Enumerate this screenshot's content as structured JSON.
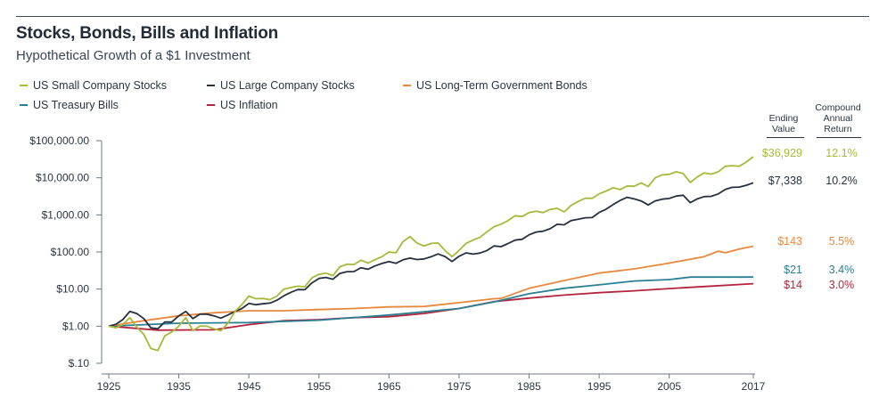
{
  "title": "Stocks, Bonds, Bills and Inflation",
  "subtitle": "Hypothetical Growth of a $1 Investment",
  "columns": {
    "ending_value": [
      "Ending",
      "Value"
    ],
    "cagr": [
      "Compound",
      "Annual",
      "Return"
    ]
  },
  "chart_data": {
    "type": "line",
    "title": "Stocks, Bonds, Bills and Inflation",
    "subtitle": "Hypothetical Growth of a $1 Investment",
    "y_scale": "log",
    "ylim": [
      0.1,
      100000
    ],
    "xlim": [
      1925,
      2017
    ],
    "x_ticks": [
      "1925",
      "1935",
      "1945",
      "1955",
      "1965",
      "1975",
      "1985",
      "1995",
      "2005",
      "2017"
    ],
    "x_tick_values": [
      1925,
      1935,
      1945,
      1955,
      1965,
      1975,
      1985,
      1995,
      2005,
      2017
    ],
    "y_ticks": [
      "$100,000.00",
      "$10,000.00",
      "$1,000.00",
      "$100.00",
      "$10.00",
      "$1.00",
      "$.10"
    ],
    "y_tick_values": [
      100000,
      10000,
      1000,
      100,
      10,
      1,
      0.1
    ],
    "grid": false,
    "legend_position": "top-left",
    "series": [
      {
        "name": "US Small Company Stocks",
        "color": "#a8b93a",
        "ending_value": "$36,929",
        "cagr": "12.1%",
        "points": [
          [
            1925,
            1
          ],
          [
            1926,
            0.9
          ],
          [
            1927,
            1.1
          ],
          [
            1928,
            1.7
          ],
          [
            1929,
            0.95
          ],
          [
            1930,
            0.6
          ],
          [
            1931,
            0.25
          ],
          [
            1932,
            0.22
          ],
          [
            1933,
            0.55
          ],
          [
            1934,
            0.7
          ],
          [
            1935,
            1.0
          ],
          [
            1936,
            1.7
          ],
          [
            1937,
            0.75
          ],
          [
            1938,
            1.0
          ],
          [
            1939,
            1.0
          ],
          [
            1940,
            0.85
          ],
          [
            1941,
            0.75
          ],
          [
            1942,
            1.2
          ],
          [
            1943,
            2.5
          ],
          [
            1944,
            3.8
          ],
          [
            1945,
            6.5
          ],
          [
            1946,
            5.5
          ],
          [
            1947,
            5.6
          ],
          [
            1948,
            5.2
          ],
          [
            1949,
            6.5
          ],
          [
            1950,
            10
          ],
          [
            1951,
            11
          ],
          [
            1952,
            12
          ],
          [
            1953,
            11.5
          ],
          [
            1954,
            20
          ],
          [
            1955,
            25
          ],
          [
            1956,
            27
          ],
          [
            1957,
            23
          ],
          [
            1958,
            40
          ],
          [
            1959,
            47
          ],
          [
            1960,
            46
          ],
          [
            1961,
            60
          ],
          [
            1962,
            50
          ],
          [
            1963,
            62
          ],
          [
            1964,
            75
          ],
          [
            1965,
            100
          ],
          [
            1966,
            95
          ],
          [
            1967,
            190
          ],
          [
            1968,
            260
          ],
          [
            1969,
            175
          ],
          [
            1970,
            145
          ],
          [
            1971,
            170
          ],
          [
            1972,
            175
          ],
          [
            1973,
            110
          ],
          [
            1974,
            75
          ],
          [
            1975,
            110
          ],
          [
            1976,
            170
          ],
          [
            1977,
            210
          ],
          [
            1978,
            250
          ],
          [
            1979,
            350
          ],
          [
            1980,
            480
          ],
          [
            1981,
            560
          ],
          [
            1982,
            700
          ],
          [
            1983,
            950
          ],
          [
            1984,
            900
          ],
          [
            1985,
            1150
          ],
          [
            1986,
            1250
          ],
          [
            1987,
            1150
          ],
          [
            1988,
            1400
          ],
          [
            1989,
            1500
          ],
          [
            1990,
            1200
          ],
          [
            1991,
            1800
          ],
          [
            1992,
            2300
          ],
          [
            1993,
            2800
          ],
          [
            1994,
            2800
          ],
          [
            1995,
            3700
          ],
          [
            1996,
            4400
          ],
          [
            1997,
            5400
          ],
          [
            1998,
            4800
          ],
          [
            1999,
            6000
          ],
          [
            2000,
            5900
          ],
          [
            2001,
            7300
          ],
          [
            2002,
            5800
          ],
          [
            2003,
            10000
          ],
          [
            2004,
            12000
          ],
          [
            2005,
            12400
          ],
          [
            2006,
            14500
          ],
          [
            2007,
            13000
          ],
          [
            2008,
            7500
          ],
          [
            2009,
            10500
          ],
          [
            2010,
            13500
          ],
          [
            2011,
            12500
          ],
          [
            2012,
            14500
          ],
          [
            2013,
            20500
          ],
          [
            2014,
            21200
          ],
          [
            2015,
            20500
          ],
          [
            2016,
            26500
          ],
          [
            2017,
            36929
          ]
        ]
      },
      {
        "name": "US Large Company Stocks",
        "color": "#25313f",
        "ending_value": "$7,338",
        "cagr": "10.2%",
        "points": [
          [
            1925,
            1
          ],
          [
            1926,
            1.12
          ],
          [
            1927,
            1.5
          ],
          [
            1928,
            2.5
          ],
          [
            1929,
            2.2
          ],
          [
            1930,
            1.6
          ],
          [
            1931,
            0.9
          ],
          [
            1932,
            0.85
          ],
          [
            1933,
            1.3
          ],
          [
            1934,
            1.3
          ],
          [
            1935,
            1.9
          ],
          [
            1936,
            2.5
          ],
          [
            1937,
            1.6
          ],
          [
            1938,
            2.1
          ],
          [
            1939,
            2.1
          ],
          [
            1940,
            1.9
          ],
          [
            1941,
            1.65
          ],
          [
            1942,
            2.0
          ],
          [
            1943,
            2.5
          ],
          [
            1944,
            3.0
          ],
          [
            1945,
            4.1
          ],
          [
            1946,
            3.8
          ],
          [
            1947,
            4.0
          ],
          [
            1948,
            4.2
          ],
          [
            1949,
            5.0
          ],
          [
            1950,
            6.6
          ],
          [
            1951,
            8.2
          ],
          [
            1952,
            9.7
          ],
          [
            1953,
            9.6
          ],
          [
            1954,
            14.7
          ],
          [
            1955,
            19.4
          ],
          [
            1956,
            20.6
          ],
          [
            1957,
            18.4
          ],
          [
            1958,
            26.4
          ],
          [
            1959,
            29.5
          ],
          [
            1960,
            29.7
          ],
          [
            1961,
            37.6
          ],
          [
            1962,
            34.3
          ],
          [
            1963,
            42.1
          ],
          [
            1964,
            49.1
          ],
          [
            1965,
            55.2
          ],
          [
            1966,
            49.7
          ],
          [
            1967,
            61.6
          ],
          [
            1968,
            68.4
          ],
          [
            1969,
            62.6
          ],
          [
            1970,
            65.1
          ],
          [
            1971,
            74.4
          ],
          [
            1972,
            88.6
          ],
          [
            1973,
            75.6
          ],
          [
            1974,
            55.5
          ],
          [
            1975,
            76.2
          ],
          [
            1976,
            94.5
          ],
          [
            1977,
            87.7
          ],
          [
            1978,
            93.4
          ],
          [
            1979,
            110
          ],
          [
            1980,
            146
          ],
          [
            1981,
            139
          ],
          [
            1982,
            169
          ],
          [
            1983,
            208
          ],
          [
            1984,
            221
          ],
          [
            1985,
            291
          ],
          [
            1986,
            345
          ],
          [
            1987,
            363
          ],
          [
            1988,
            423
          ],
          [
            1989,
            557
          ],
          [
            1990,
            540
          ],
          [
            1991,
            704
          ],
          [
            1992,
            758
          ],
          [
            1993,
            834
          ],
          [
            1994,
            845
          ],
          [
            1995,
            1163
          ],
          [
            1996,
            1430
          ],
          [
            1997,
            1907
          ],
          [
            1998,
            2452
          ],
          [
            1999,
            2968
          ],
          [
            2000,
            2698
          ],
          [
            2001,
            2377
          ],
          [
            2002,
            1852
          ],
          [
            2003,
            2384
          ],
          [
            2004,
            2643
          ],
          [
            2005,
            2773
          ],
          [
            2006,
            3211
          ],
          [
            2007,
            3387
          ],
          [
            2008,
            2134
          ],
          [
            2009,
            2699
          ],
          [
            2010,
            3105
          ],
          [
            2011,
            3171
          ],
          [
            2012,
            3678
          ],
          [
            2013,
            4870
          ],
          [
            2014,
            5536
          ],
          [
            2015,
            5613
          ],
          [
            2016,
            6284
          ],
          [
            2017,
            7338
          ]
        ]
      },
      {
        "name": "US Long-Term Government Bonds",
        "color": "#e8883c",
        "ending_value": "$143",
        "cagr": "5.5%",
        "points": [
          [
            1925,
            1
          ],
          [
            1930,
            1.4
          ],
          [
            1935,
            1.9
          ],
          [
            1940,
            2.3
          ],
          [
            1945,
            2.6
          ],
          [
            1950,
            2.6
          ],
          [
            1955,
            2.8
          ],
          [
            1960,
            3.0
          ],
          [
            1965,
            3.3
          ],
          [
            1970,
            3.4
          ],
          [
            1975,
            4.3
          ],
          [
            1980,
            5.5
          ],
          [
            1981,
            5.6
          ],
          [
            1985,
            10.5
          ],
          [
            1990,
            17
          ],
          [
            1995,
            27
          ],
          [
            2000,
            35
          ],
          [
            2005,
            50
          ],
          [
            2010,
            75
          ],
          [
            2012,
            105
          ],
          [
            2013,
            95
          ],
          [
            2015,
            120
          ],
          [
            2017,
            143
          ]
        ]
      },
      {
        "name": "US Treasury Bills",
        "color": "#2a7f93",
        "ending_value": "$21",
        "cagr": "3.4%",
        "points": [
          [
            1925,
            1
          ],
          [
            1935,
            1.2
          ],
          [
            1945,
            1.25
          ],
          [
            1955,
            1.45
          ],
          [
            1965,
            2.0
          ],
          [
            1975,
            3.0
          ],
          [
            1980,
            4.5
          ],
          [
            1985,
            7.5
          ],
          [
            1990,
            10.5
          ],
          [
            1995,
            13
          ],
          [
            2000,
            16.5
          ],
          [
            2005,
            18
          ],
          [
            2008,
            21
          ],
          [
            2017,
            21
          ]
        ]
      },
      {
        "name": "US Inflation",
        "color": "#b5243d",
        "ending_value": "$14",
        "cagr": "3.0%",
        "points": [
          [
            1925,
            1
          ],
          [
            1932,
            0.78
          ],
          [
            1940,
            0.8
          ],
          [
            1945,
            1.1
          ],
          [
            1950,
            1.4
          ],
          [
            1955,
            1.5
          ],
          [
            1960,
            1.7
          ],
          [
            1965,
            1.8
          ],
          [
            1970,
            2.2
          ],
          [
            1975,
            3.0
          ],
          [
            1980,
            4.6
          ],
          [
            1985,
            5.7
          ],
          [
            1990,
            6.9
          ],
          [
            1995,
            8.0
          ],
          [
            2000,
            9.0
          ],
          [
            2005,
            10.3
          ],
          [
            2010,
            11.7
          ],
          [
            2017,
            14
          ]
        ]
      }
    ]
  }
}
